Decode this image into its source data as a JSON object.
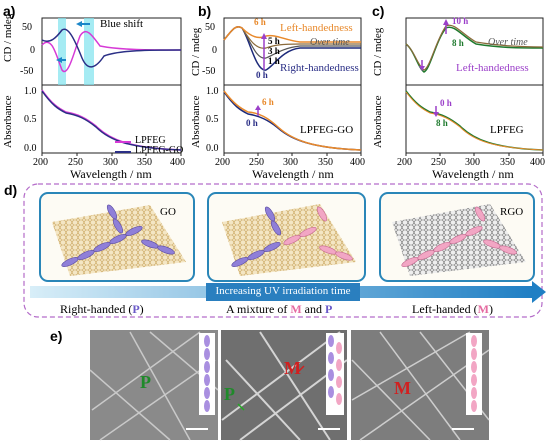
{
  "panels": {
    "a": {
      "letter": "a)",
      "ylabel_top": "CD / mdeg",
      "ylabel_bottom": "Absorbance",
      "xlabel": "Wavelength / nm",
      "annotation": "Blue shift",
      "legend": [
        "LPFEG",
        "LPFEG-GO"
      ],
      "top_yticks": [
        "50",
        "0",
        "-50"
      ],
      "bottom_yticks": [
        "1.0",
        "0.5",
        "0.0"
      ],
      "xticks": [
        "200",
        "250",
        "300",
        "350",
        "400"
      ]
    },
    "b": {
      "letter": "b)",
      "ylabel_top": "CD / mdeg",
      "ylabel_bottom": "Absorbance",
      "xlabel": "Wavelength / nm",
      "annot_left": "Left-handedness",
      "annot_right": "Right-handedness",
      "annot_time": "Over time",
      "time_labels": [
        "6 h",
        "5 h",
        "3 h",
        "1 h",
        "0 h"
      ],
      "bottom_time_labels": [
        "6 h",
        "0 h"
      ],
      "sample": "LPFEG-GO",
      "top_yticks": [
        "50",
        "0",
        "-50"
      ],
      "bottom_yticks": [
        "1.0",
        "0.5",
        "0.0"
      ],
      "xticks": [
        "200",
        "250",
        "300",
        "350",
        "400"
      ]
    },
    "c": {
      "letter": "c)",
      "ylabel_top": "CD / mdeg",
      "ylabel_bottom": "Absorbance",
      "xlabel": "Wavelength / nm",
      "annot_left": "Left-handedness",
      "annot_time": "Over time",
      "time_labels": [
        "10 h",
        "8 h"
      ],
      "bottom_time_labels": [
        "0 h",
        "8 h"
      ],
      "sample": "LPFEG",
      "xticks": [
        "200",
        "250",
        "300",
        "350",
        "400"
      ]
    },
    "d": {
      "letter": "d)",
      "boxes": [
        "GO",
        "RGO"
      ],
      "arrow_label": "Increasing UV irradiation time",
      "caption_left_pre": "Right-handed (",
      "caption_left_sym": "P",
      "caption_left_post": ")",
      "caption_mid_pre": "A mixture of ",
      "caption_mid_m": "M",
      "caption_mid_and": " and ",
      "caption_mid_p": "P",
      "caption_right_pre": "Left-handed (",
      "caption_right_sym": "M",
      "caption_right_post": ")"
    },
    "e": {
      "letter": "e)",
      "labels": [
        "P",
        "P",
        "M",
        "M"
      ]
    }
  },
  "colors": {
    "lpfeg": "#d63ad6",
    "lpfeg_go": "#2b2f86",
    "orange": "#e8892b",
    "green": "#1f7a2e",
    "purple": "#9b3fc9",
    "blue_arrow": "#1a86c8",
    "cyan_band": "#7fe3ee"
  },
  "chart_data": [
    {
      "type": "line",
      "panel": "a-top",
      "xlabel": "Wavelength / nm",
      "ylabel": "CD / mdeg",
      "xlim": [
        200,
        400
      ],
      "ylim": [
        -80,
        80
      ],
      "series": [
        {
          "name": "LPFEG",
          "x": [
            200,
            210,
            220,
            228,
            240,
            250,
            260,
            268,
            280,
            300,
            350,
            400
          ],
          "y": [
            5,
            20,
            -20,
            -60,
            -35,
            20,
            45,
            30,
            5,
            2,
            0,
            0
          ]
        },
        {
          "name": "LPFEG-GO",
          "x": [
            200,
            210,
            222,
            235,
            250,
            262,
            275,
            290,
            320,
            400
          ],
          "y": [
            25,
            15,
            30,
            50,
            10,
            -40,
            -65,
            -20,
            -3,
            0
          ]
        }
      ]
    },
    {
      "type": "line",
      "panel": "a-bottom",
      "xlabel": "Wavelength / nm",
      "ylabel": "Absorbance",
      "xlim": [
        200,
        400
      ],
      "ylim": [
        0,
        1.1
      ],
      "series": [
        {
          "name": "LPFEG",
          "x": [
            200,
            210,
            220,
            230,
            240,
            250,
            260,
            270,
            280,
            300,
            350,
            400
          ],
          "y": [
            1.0,
            0.85,
            0.8,
            0.72,
            0.7,
            0.68,
            0.6,
            0.45,
            0.3,
            0.12,
            0.03,
            0.01
          ]
        },
        {
          "name": "LPFEG-GO",
          "x": [
            200,
            210,
            220,
            230,
            240,
            250,
            260,
            270,
            280,
            300,
            350,
            400
          ],
          "y": [
            1.0,
            0.83,
            0.78,
            0.7,
            0.68,
            0.66,
            0.58,
            0.44,
            0.3,
            0.13,
            0.04,
            0.02
          ]
        }
      ]
    }
  ]
}
